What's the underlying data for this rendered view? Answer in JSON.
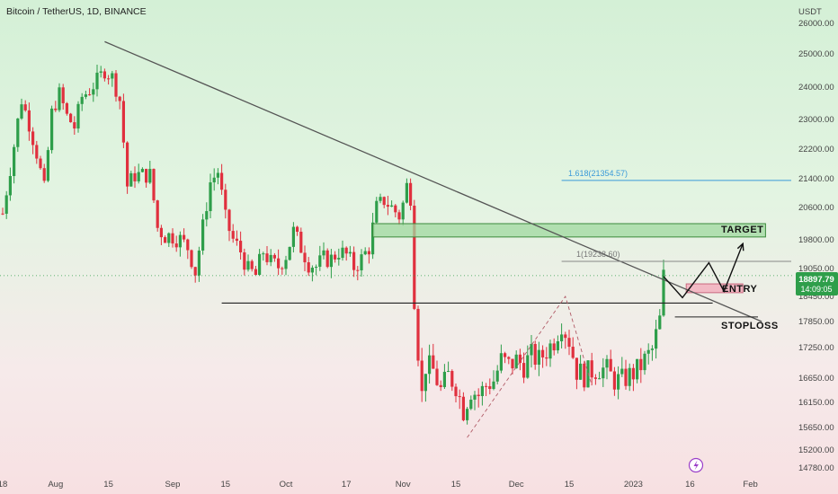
{
  "header": {
    "title": "Bitcoin / TetherUS, 1D, BINANCE",
    "currency": "USDT"
  },
  "colors": {
    "up": "#2e9e4a",
    "down": "#e0303e",
    "trendline": "#555555",
    "fib_line": "#3a9ad9",
    "target_fill": "#9fd89f",
    "entry_fill": "#f2b3c0",
    "price_tag": "#2e9e4a"
  },
  "price_axis": {
    "ticks": [
      26000,
      25000,
      24000,
      23000,
      22200,
      21400,
      20600,
      19800,
      19050,
      18450,
      17850,
      17250,
      16650,
      16150,
      15650,
      15200,
      14780
    ],
    "labels": [
      "26000.00",
      "25000.00",
      "24000.00",
      "23000.00",
      "22200.00",
      "21400.00",
      "20600.00",
      "19800.00",
      "19050.00",
      "18450.00",
      "17850.00",
      "17250.00",
      "16650.00",
      "16150.00",
      "15650.00",
      "15200.00",
      "14780.00"
    ],
    "current_price": "18897.79",
    "countdown": "14:09:05"
  },
  "time_axis": {
    "labels": [
      {
        "text": "18",
        "day": 0
      },
      {
        "text": "Aug",
        "day": 14
      },
      {
        "text": "15",
        "day": 28
      },
      {
        "text": "Sep",
        "day": 45
      },
      {
        "text": "15",
        "day": 59
      },
      {
        "text": "Oct",
        "day": 75
      },
      {
        "text": "17",
        "day": 91
      },
      {
        "text": "Nov",
        "day": 106
      },
      {
        "text": "15",
        "day": 120
      },
      {
        "text": "Dec",
        "day": 136
      },
      {
        "text": "15",
        "day": 150
      },
      {
        "text": "2023",
        "day": 167
      },
      {
        "text": "16",
        "day": 182
      },
      {
        "text": "Feb",
        "day": 198
      }
    ]
  },
  "annotations": {
    "target_label": "TARGET",
    "entry_label": "ENTRY",
    "stoploss_label": "STOPLOSS",
    "fib_1618_label": "1.618(21354.57)",
    "fib_1_label": "1(19238.60)"
  },
  "chart_data": {
    "type": "candlestick",
    "title": "Bitcoin / TetherUS, 1D, BINANCE",
    "ylabel": "USDT",
    "ylim": [
      14780,
      26000
    ],
    "trendline": {
      "from": {
        "day": 27,
        "price": 25400
      },
      "to": {
        "day": 201,
        "price": 17850
      }
    },
    "support_line": {
      "from_day": 58,
      "to_day": 188,
      "price": 18290
    },
    "target_zone": {
      "from_day": 98,
      "to_day": 202,
      "low": 19870,
      "high": 20200
    },
    "entry_zone": {
      "from_day": 181,
      "to_day": 196,
      "low": 18530,
      "high": 18720
    },
    "stoploss_line": {
      "from_day": 178,
      "to_day": 200,
      "price": 17960
    },
    "fib_levels": [
      {
        "level": 1.618,
        "price": 21354.57,
        "from_day": 148
      },
      {
        "level": 1,
        "price": 19238.6,
        "from_day": 148
      }
    ],
    "projection_path": [
      {
        "day": 175,
        "price": 18880
      },
      {
        "day": 180,
        "price": 18420
      },
      {
        "day": 187,
        "price": 19200
      },
      {
        "day": 191,
        "price": 18560
      },
      {
        "day": 196,
        "price": 19700
      }
    ],
    "pattern_path": [
      {
        "day": 123,
        "price": 15450
      },
      {
        "day": 149,
        "price": 18450
      },
      {
        "day": 156,
        "price": 16500
      }
    ],
    "price_points": [
      {
        "day": 0,
        "price": 20450
      },
      {
        "day": 3,
        "price": 22300
      },
      {
        "day": 5,
        "price": 23600
      },
      {
        "day": 7,
        "price": 22900
      },
      {
        "day": 9,
        "price": 22100
      },
      {
        "day": 11,
        "price": 21100
      },
      {
        "day": 13,
        "price": 23200
      },
      {
        "day": 15,
        "price": 23800
      },
      {
        "day": 17,
        "price": 23100
      },
      {
        "day": 19,
        "price": 22800
      },
      {
        "day": 21,
        "price": 23700
      },
      {
        "day": 23,
        "price": 23900
      },
      {
        "day": 25,
        "price": 24200
      },
      {
        "day": 27,
        "price": 24500
      },
      {
        "day": 29,
        "price": 24300
      },
      {
        "day": 31,
        "price": 23600
      },
      {
        "day": 33,
        "price": 21200
      },
      {
        "day": 35,
        "price": 21500
      },
      {
        "day": 37,
        "price": 21500
      },
      {
        "day": 39,
        "price": 21500
      },
      {
        "day": 41,
        "price": 20100
      },
      {
        "day": 43,
        "price": 19900
      },
      {
        "day": 45,
        "price": 19900
      },
      {
        "day": 47,
        "price": 19800
      },
      {
        "day": 49,
        "price": 19600
      },
      {
        "day": 51,
        "price": 19000
      },
      {
        "day": 53,
        "price": 20100
      },
      {
        "day": 55,
        "price": 21300
      },
      {
        "day": 57,
        "price": 21600
      },
      {
        "day": 59,
        "price": 20300
      },
      {
        "day": 61,
        "price": 19800
      },
      {
        "day": 63,
        "price": 19500
      },
      {
        "day": 65,
        "price": 19000
      },
      {
        "day": 67,
        "price": 18900
      },
      {
        "day": 69,
        "price": 19500
      },
      {
        "day": 71,
        "price": 19200
      },
      {
        "day": 73,
        "price": 19100
      },
      {
        "day": 75,
        "price": 19400
      },
      {
        "day": 77,
        "price": 20000
      },
      {
        "day": 79,
        "price": 19600
      },
      {
        "day": 81,
        "price": 19200
      },
      {
        "day": 83,
        "price": 19100
      },
      {
        "day": 85,
        "price": 19300
      },
      {
        "day": 87,
        "price": 19300
      },
      {
        "day": 89,
        "price": 19500
      },
      {
        "day": 91,
        "price": 19400
      },
      {
        "day": 93,
        "price": 19100
      },
      {
        "day": 95,
        "price": 19300
      },
      {
        "day": 97,
        "price": 19600
      },
      {
        "day": 99,
        "price": 20600
      },
      {
        "day": 101,
        "price": 20800
      },
      {
        "day": 103,
        "price": 20600
      },
      {
        "day": 105,
        "price": 20400
      },
      {
        "day": 106,
        "price": 20700
      },
      {
        "day": 107,
        "price": 21200
      },
      {
        "day": 108,
        "price": 20900
      },
      {
        "day": 109,
        "price": 18400
      },
      {
        "day": 110,
        "price": 17200
      },
      {
        "day": 111,
        "price": 16300
      },
      {
        "day": 112,
        "price": 16900
      },
      {
        "day": 114,
        "price": 16800
      },
      {
        "day": 116,
        "price": 16400
      },
      {
        "day": 118,
        "price": 16700
      },
      {
        "day": 120,
        "price": 16500
      },
      {
        "day": 122,
        "price": 16000
      },
      {
        "day": 124,
        "price": 16400
      },
      {
        "day": 126,
        "price": 16300
      },
      {
        "day": 128,
        "price": 16500
      },
      {
        "day": 130,
        "price": 16600
      },
      {
        "day": 132,
        "price": 17000
      },
      {
        "day": 134,
        "price": 16900
      },
      {
        "day": 136,
        "price": 17000
      },
      {
        "day": 138,
        "price": 16900
      },
      {
        "day": 140,
        "price": 17100
      },
      {
        "day": 142,
        "price": 17000
      },
      {
        "day": 144,
        "price": 17200
      },
      {
        "day": 146,
        "price": 17400
      },
      {
        "day": 148,
        "price": 17800
      },
      {
        "day": 150,
        "price": 17400
      },
      {
        "day": 152,
        "price": 16800
      },
      {
        "day": 154,
        "price": 16700
      },
      {
        "day": 156,
        "price": 16800
      },
      {
        "day": 158,
        "price": 16850
      },
      {
        "day": 160,
        "price": 16800
      },
      {
        "day": 162,
        "price": 16600
      },
      {
        "day": 164,
        "price": 16600
      },
      {
        "day": 166,
        "price": 16700
      },
      {
        "day": 168,
        "price": 16800
      },
      {
        "day": 170,
        "price": 17000
      },
      {
        "day": 172,
        "price": 17200
      },
      {
        "day": 174,
        "price": 17900
      },
      {
        "day": 175,
        "price": 18880
      }
    ]
  }
}
